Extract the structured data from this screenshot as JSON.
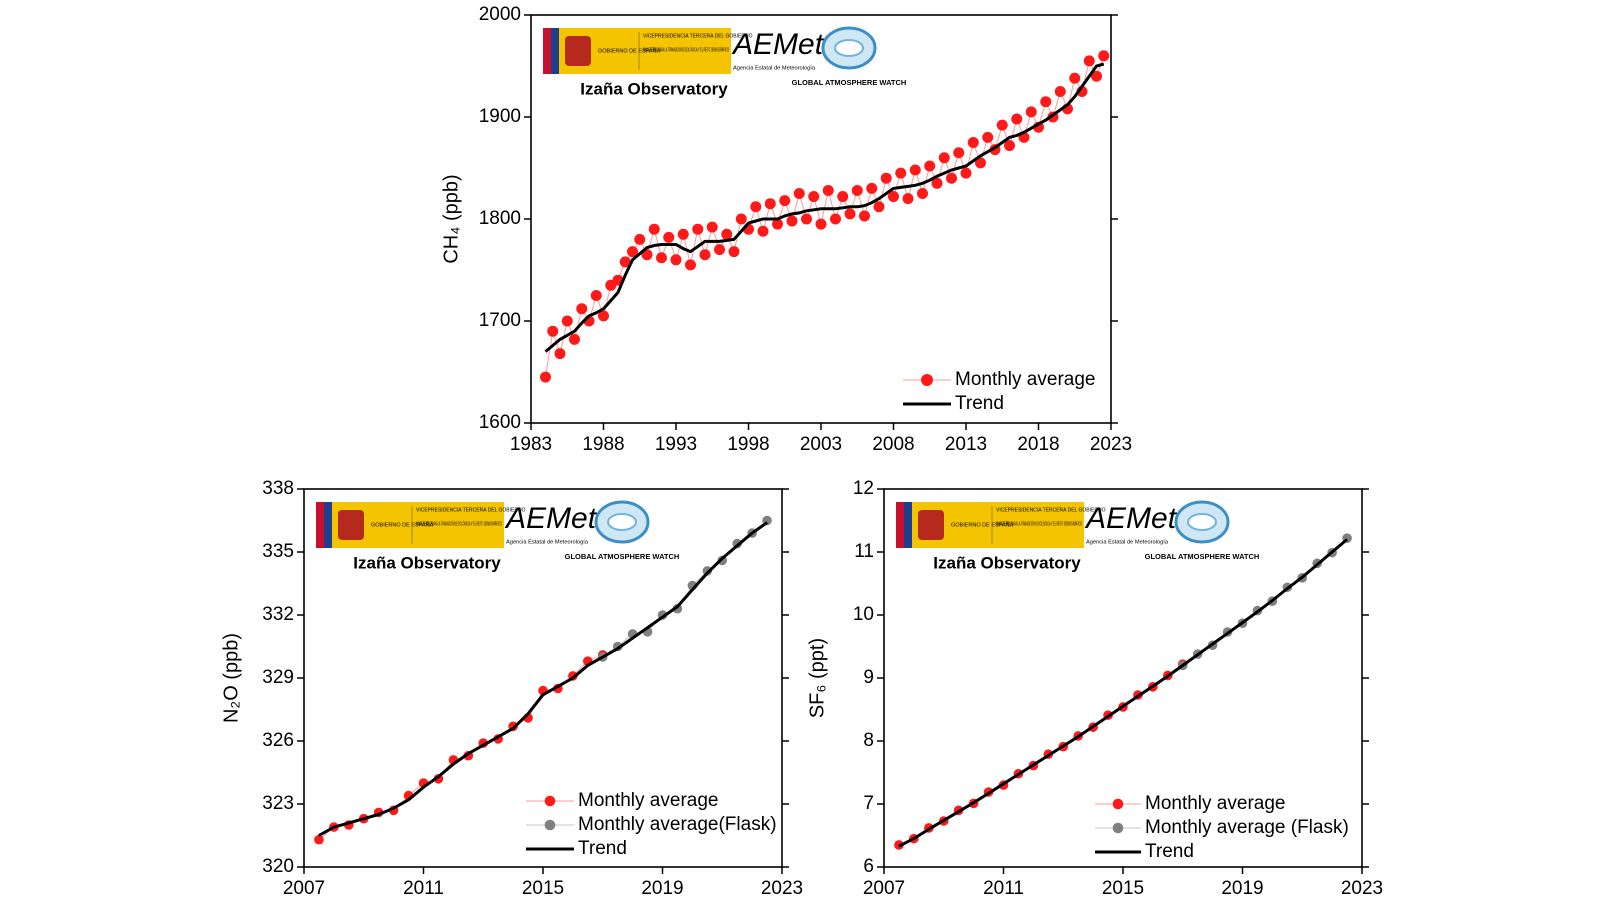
{
  "chart_data": [
    {
      "type": "line",
      "ylabel": "CH₄ (ppb)",
      "annotations": [
        "Izaña Observatory"
      ],
      "logo": {
        "gov": "GOBIERNO DE ESPAÑA",
        "vice": "VICEPRESIDENCIA TERCERA DEL GOBIERNO",
        "min": "MINISTERIO PARA LA TRANSICIÓN ECOLÓGICA Y EL RETO DEMOGRÁFICO",
        "aemet": "AEMet",
        "agency": "Agencia Estatal de Meteorología",
        "gaw": "GLOBAL ATMOSPHERE WATCH"
      },
      "xlim": [
        1983,
        2023
      ],
      "xticks": [
        1983,
        1988,
        1993,
        1998,
        2003,
        2008,
        2013,
        2018,
        2023
      ],
      "ylim": [
        1600,
        2000
      ],
      "yticks": [
        1600,
        1700,
        1800,
        1900,
        2000
      ],
      "legend": "lower right",
      "x": [
        1984,
        1984.5,
        1985,
        1985.5,
        1986,
        1986.5,
        1987,
        1987.5,
        1988,
        1988.5,
        1989,
        1989.5,
        1990,
        1990.5,
        1991,
        1991.5,
        1992,
        1992.5,
        1993,
        1993.5,
        1994,
        1994.5,
        1995,
        1995.5,
        1996,
        1996.5,
        1997,
        1997.5,
        1998,
        1998.5,
        1999,
        1999.5,
        2000,
        2000.5,
        2001,
        2001.5,
        2002,
        2002.5,
        2003,
        2003.5,
        2004,
        2004.5,
        2005,
        2005.5,
        2006,
        2006.5,
        2007,
        2007.5,
        2008,
        2008.5,
        2009,
        2009.5,
        2010,
        2010.5,
        2011,
        2011.5,
        2012,
        2012.5,
        2013,
        2013.5,
        2014,
        2014.5,
        2015,
        2015.5,
        2016,
        2016.5,
        2017,
        2017.5,
        2018,
        2018.5,
        2019,
        2019.5,
        2020,
        2020.5,
        2021,
        2021.5,
        2022,
        2022.5
      ],
      "series": [
        {
          "name": "Monthly average",
          "color": "#ff1a1a",
          "style": "markers",
          "values": [
            1645,
            1690,
            1668,
            1700,
            1682,
            1712,
            1700,
            1725,
            1705,
            1735,
            1740,
            1758,
            1768,
            1780,
            1765,
            1790,
            1762,
            1782,
            1760,
            1785,
            1755,
            1790,
            1765,
            1792,
            1770,
            1785,
            1768,
            1800,
            1790,
            1812,
            1788,
            1815,
            1795,
            1818,
            1798,
            1825,
            1800,
            1822,
            1795,
            1828,
            1800,
            1822,
            1805,
            1828,
            1803,
            1830,
            1812,
            1840,
            1822,
            1845,
            1820,
            1848,
            1825,
            1852,
            1835,
            1860,
            1840,
            1865,
            1845,
            1875,
            1855,
            1880,
            1868,
            1892,
            1872,
            1898,
            1880,
            1905,
            1890,
            1915,
            1900,
            1925,
            1908,
            1938,
            1925,
            1955,
            1940,
            1960
          ]
        },
        {
          "name": "Trend",
          "color": "#000000",
          "style": "line",
          "values": [
            1670,
            1676,
            1682,
            1686,
            1690,
            1698,
            1705,
            1708,
            1712,
            1720,
            1728,
            1745,
            1760,
            1766,
            1772,
            1774,
            1775,
            1775,
            1775,
            1771,
            1768,
            1773,
            1778,
            1778,
            1778,
            1779,
            1780,
            1788,
            1796,
            1798,
            1800,
            1800,
            1800,
            1803,
            1805,
            1806,
            1808,
            1809,
            1810,
            1810,
            1810,
            1811,
            1812,
            1812,
            1813,
            1816,
            1820,
            1825,
            1830,
            1831,
            1832,
            1833,
            1835,
            1838,
            1842,
            1845,
            1848,
            1850,
            1852,
            1857,
            1862,
            1866,
            1870,
            1875,
            1880,
            1882,
            1885,
            1889,
            1893,
            1897,
            1902,
            1907,
            1912,
            1920,
            1930,
            1940,
            1950,
            1952
          ]
        }
      ]
    },
    {
      "type": "line",
      "ylabel": "N₂O (ppb)",
      "annotations": [
        "Izaña Observatory"
      ],
      "logo": {
        "gov": "GOBIERNO DE ESPAÑA",
        "vice": "VICEPRESIDENCIA TERCERA DEL GOBIERNO",
        "min": "MINISTERIO PARA LA TRANSICIÓN ECOLÓGICA Y EL RETO DEMOGRÁFICO",
        "aemet": "AEMet",
        "agency": "Agencia Estatal de Meteorología",
        "gaw": "GLOBAL ATMOSPHERE WATCH"
      },
      "xlim": [
        2007,
        2023
      ],
      "xticks": [
        2007,
        2011,
        2015,
        2019,
        2023
      ],
      "ylim": [
        320,
        338
      ],
      "yticks": [
        320,
        323,
        326,
        329,
        332,
        335,
        338
      ],
      "legend": "lower right",
      "x": [
        2007.5,
        2008,
        2008.5,
        2009,
        2009.5,
        2010,
        2010.5,
        2011,
        2011.5,
        2012,
        2012.5,
        2013,
        2013.5,
        2014,
        2014.5,
        2015,
        2015.5,
        2016,
        2016.5,
        2017,
        2017.5,
        2018,
        2018.5,
        2019,
        2019.5,
        2020,
        2020.5,
        2021,
        2021.5,
        2022,
        2022.5
      ],
      "series": [
        {
          "name": "Monthly average",
          "color": "#ff1a1a",
          "style": "markers",
          "values": [
            321.3,
            321.9,
            322.0,
            322.3,
            322.6,
            322.7,
            323.4,
            324.0,
            324.2,
            325.1,
            325.3,
            325.9,
            326.1,
            326.7,
            327.1,
            328.4,
            328.5,
            329.1,
            329.8,
            330.1,
            null,
            null,
            null,
            null,
            null,
            null,
            null,
            null,
            null,
            null,
            null
          ]
        },
        {
          "name": "Monthly average(Flask)",
          "color": "#808080",
          "style": "markers",
          "values": [
            null,
            null,
            null,
            null,
            null,
            null,
            null,
            null,
            null,
            null,
            null,
            null,
            null,
            null,
            null,
            null,
            null,
            null,
            null,
            330.0,
            330.5,
            331.1,
            331.2,
            332.0,
            332.3,
            333.4,
            334.1,
            334.6,
            335.4,
            335.9,
            336.5
          ]
        },
        {
          "name": "Trend",
          "color": "#000000",
          "style": "line",
          "values": [
            321.5,
            321.9,
            322.1,
            322.3,
            322.5,
            322.8,
            323.2,
            323.8,
            324.3,
            324.9,
            325.4,
            325.8,
            326.2,
            326.6,
            327.3,
            328.2,
            328.6,
            329.0,
            329.6,
            330.0,
            330.4,
            330.9,
            331.4,
            331.9,
            332.4,
            333.2,
            334.0,
            334.7,
            335.3,
            335.9,
            336.4
          ]
        }
      ]
    },
    {
      "type": "line",
      "ylabel": "SF₆ (ppt)",
      "annotations": [
        "Izaña Observatory"
      ],
      "logo": {
        "gov": "GOBIERNO DE ESPAÑA",
        "vice": "VICEPRESIDENCIA TERCERA DEL GOBIERNO",
        "min": "MINISTERIO PARA LA TRANSICIÓN ECOLÓGICA Y EL RETO DEMOGRÁFICO",
        "aemet": "AEMet",
        "agency": "Agencia Estatal de Meteorología",
        "gaw": "GLOBAL ATMOSPHERE WATCH"
      },
      "xlim": [
        2007,
        2023
      ],
      "xticks": [
        2007,
        2011,
        2015,
        2019,
        2023
      ],
      "ylim": [
        6,
        12
      ],
      "yticks": [
        6,
        7,
        8,
        9,
        10,
        11,
        12
      ],
      "legend": "lower right",
      "x": [
        2007.5,
        2008,
        2008.5,
        2009,
        2009.5,
        2010,
        2010.5,
        2011,
        2011.5,
        2012,
        2012.5,
        2013,
        2013.5,
        2014,
        2014.5,
        2015,
        2015.5,
        2016,
        2016.5,
        2017,
        2017.5,
        2018,
        2018.5,
        2019,
        2019.5,
        2020,
        2020.5,
        2021,
        2021.5,
        2022,
        2022.5
      ],
      "series": [
        {
          "name": "Monthly average",
          "color": "#ff1a1a",
          "style": "markers",
          "values": [
            6.35,
            6.45,
            6.62,
            6.73,
            6.9,
            7.01,
            7.19,
            7.3,
            7.48,
            7.61,
            7.79,
            7.91,
            8.08,
            8.22,
            8.41,
            8.54,
            8.73,
            8.86,
            9.04,
            9.22,
            null,
            null,
            null,
            null,
            null,
            null,
            null,
            null,
            null,
            null,
            null
          ]
        },
        {
          "name": "Monthly average (Flask)",
          "color": "#808080",
          "style": "markers",
          "values": [
            null,
            null,
            null,
            null,
            null,
            null,
            null,
            null,
            null,
            null,
            null,
            null,
            null,
            null,
            null,
            null,
            null,
            null,
            null,
            9.2,
            9.38,
            9.52,
            9.73,
            9.87,
            10.07,
            10.22,
            10.44,
            10.59,
            10.82,
            10.99,
            11.22
          ]
        },
        {
          "name": "Trend",
          "color": "#000000",
          "style": "line",
          "values": [
            6.33,
            6.45,
            6.6,
            6.74,
            6.88,
            7.02,
            7.17,
            7.32,
            7.47,
            7.62,
            7.77,
            7.92,
            8.07,
            8.23,
            8.39,
            8.55,
            8.71,
            8.87,
            9.03,
            9.2,
            9.37,
            9.54,
            9.71,
            9.88,
            10.05,
            10.23,
            10.42,
            10.6,
            10.8,
            11.0,
            11.2
          ]
        }
      ]
    }
  ]
}
